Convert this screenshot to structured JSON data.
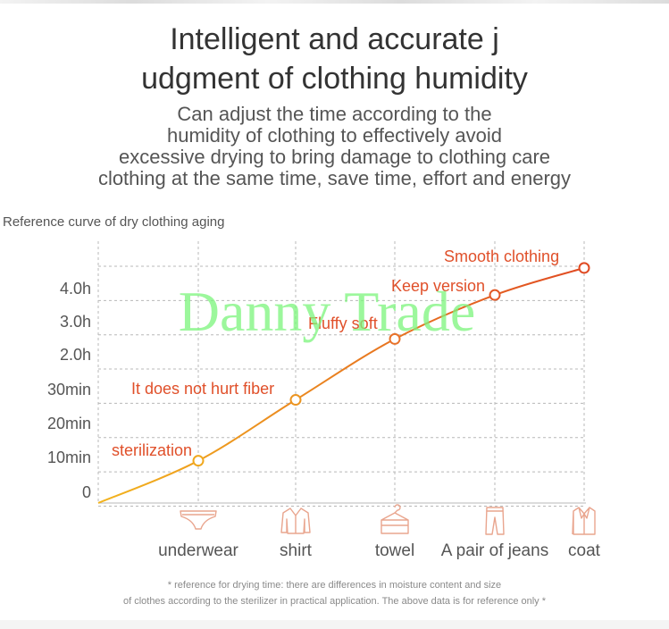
{
  "header": {
    "title_lines": [
      "Intelligent and accurate j",
      "udgment of clothing humidity"
    ],
    "subtitle_lines": [
      "Can adjust the time according to the",
      "humidity of clothing to effectively avoid",
      "excessive drying to bring damage to clothing care",
      "clothing at the same time, save time, effort and energy"
    ]
  },
  "watermark": "Danny Trade",
  "footnote_lines": [
    "* reference for drying time: there are differences in moisture content and size",
    "of clothes according to the sterilizer in practical application. The above data is for reference only *"
  ],
  "colors": {
    "curve_start": "#f2b41e",
    "curve_end": "#e04a22",
    "annotation": "#e0502a",
    "grid": "#b8b8b8",
    "axis_text": "#555555",
    "icon": "#e9a58e",
    "watermark": "#7cf57c"
  },
  "chart_data": {
    "type": "line",
    "title": "Reference curve of dry clothing aging",
    "y_ticks": [
      "0",
      "10min",
      "20min",
      "30min",
      "2.0h",
      "3.0h",
      "4.0h"
    ],
    "grid": true,
    "categories": [
      "underwear",
      "shirt",
      "towel",
      "A pair of jeans",
      "coat"
    ],
    "category_icons": [
      "underwear-icon",
      "shirt-icon",
      "towel-icon",
      "jeans-icon",
      "coat-icon"
    ],
    "points": [
      {
        "x": "underwear",
        "y": 1.25,
        "annotation": "sterilization"
      },
      {
        "x": "shirt",
        "y": 3.05,
        "annotation": "It does not hurt fiber"
      },
      {
        "x": "towel",
        "y": 4.85,
        "annotation": "Fluffy soft"
      },
      {
        "x": "A pair of jeans",
        "y": 6.15,
        "annotation": "Keep version"
      },
      {
        "x": "coat",
        "y": 6.95,
        "annotation": "Smooth clothing"
      }
    ],
    "line_start": {
      "x": "origin",
      "y": 0
    },
    "ylim": [
      0,
      7
    ]
  }
}
